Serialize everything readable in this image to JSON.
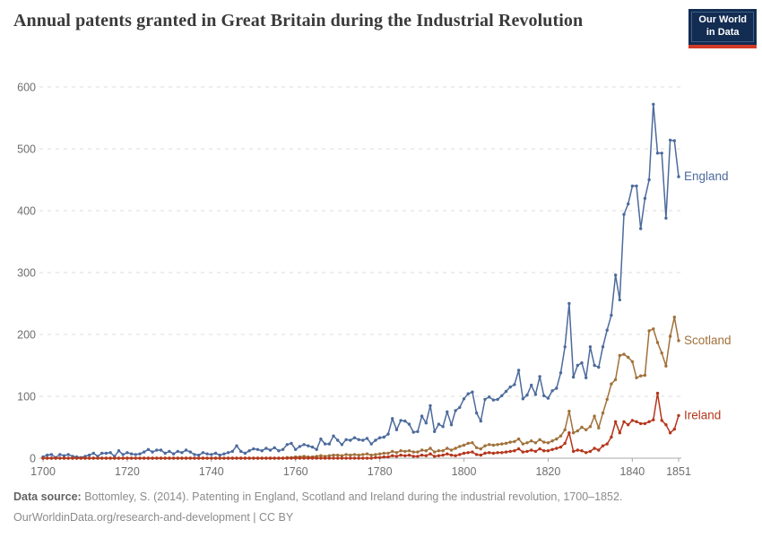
{
  "header": {
    "title": "Annual patents granted in Great Britain during the Industrial Revolution",
    "logo": {
      "line1": "Our World",
      "line2": "in Data",
      "bg_color": "#132C52",
      "accent_color": "#D33B26"
    }
  },
  "footer": {
    "source_label": "Data source:",
    "source_text": " Bottomley, S. (2014). Patenting in England, Scotland and Ireland during the industrial revolution, 1700–1852.",
    "link_line": "OurWorldinData.org/research-and-development | CC BY"
  },
  "chart_data": {
    "type": "line",
    "title": "Annual patents granted in Great Britain during the Industrial Revolution",
    "xlabel": "",
    "ylabel": "",
    "x_start": 1700,
    "x_end": 1851,
    "xlim": [
      1700,
      1851
    ],
    "ylim": [
      0,
      600
    ],
    "x_ticks": [
      1700,
      1720,
      1740,
      1760,
      1780,
      1800,
      1820,
      1840,
      1851
    ],
    "y_ticks": [
      0,
      100,
      200,
      300,
      400,
      500,
      600
    ],
    "grid": "horizontal-dashed",
    "legend_position": "line-end-labels",
    "marker": "dot",
    "series": [
      {
        "name": "England",
        "color": "#4C6A9C",
        "values": [
          2,
          5,
          6,
          1,
          6,
          4,
          6,
          3,
          2,
          1,
          3,
          5,
          8,
          3,
          8,
          8,
          9,
          3,
          12,
          6,
          9,
          7,
          6,
          7,
          10,
          14,
          10,
          13,
          13,
          8,
          11,
          7,
          11,
          9,
          13,
          10,
          6,
          5,
          9,
          7,
          6,
          8,
          5,
          7,
          9,
          11,
          20,
          11,
          8,
          12,
          15,
          14,
          12,
          16,
          13,
          17,
          12,
          14,
          22,
          24,
          14,
          19,
          22,
          20,
          18,
          14,
          31,
          23,
          23,
          36,
          29,
          22,
          30,
          29,
          33,
          30,
          29,
          32,
          23,
          29,
          33,
          34,
          39,
          64,
          46,
          61,
          60,
          55,
          42,
          43,
          68,
          57,
          85,
          43,
          55,
          51,
          75,
          54,
          77,
          82,
          96,
          104,
          107,
          73,
          60,
          95,
          99,
          94,
          95,
          101,
          108,
          115,
          119,
          142,
          96,
          102,
          118,
          103,
          132,
          101,
          97,
          109,
          113,
          138,
          180,
          250,
          131,
          150,
          154,
          130,
          180,
          150,
          147,
          180,
          207,
          231,
          296,
          256,
          394,
          411,
          440,
          440,
          371,
          420,
          450,
          572,
          493,
          493,
          388,
          514,
          513,
          455
        ]
      },
      {
        "name": "Scotland",
        "color": "#A0713A",
        "values": [
          0,
          0,
          0,
          0,
          0,
          0,
          0,
          0,
          0,
          0,
          0,
          0,
          0,
          0,
          0,
          0,
          0,
          0,
          0,
          0,
          0,
          0,
          0,
          0,
          0,
          0,
          0,
          0,
          0,
          0,
          0,
          0,
          0,
          0,
          0,
          0,
          0,
          0,
          0,
          0,
          0,
          0,
          0,
          0,
          0,
          0,
          0,
          0,
          0,
          0,
          0,
          0,
          0,
          0,
          0,
          0,
          0,
          0,
          1,
          1,
          2,
          2,
          3,
          2,
          2,
          3,
          4,
          3,
          4,
          5,
          5,
          4,
          6,
          5,
          6,
          5,
          6,
          7,
          5,
          6,
          7,
          8,
          8,
          11,
          9,
          12,
          11,
          12,
          10,
          10,
          13,
          12,
          16,
          10,
          12,
          12,
          16,
          13,
          16,
          19,
          21,
          24,
          25,
          17,
          15,
          20,
          22,
          21,
          22,
          23,
          24,
          26,
          27,
          31,
          23,
          25,
          28,
          25,
          30,
          26,
          25,
          28,
          31,
          36,
          46,
          76,
          41,
          44,
          50,
          46,
          51,
          68,
          49,
          73,
          95,
          120,
          127,
          166,
          168,
          163,
          156,
          130,
          133,
          134,
          206,
          209,
          187,
          170,
          149,
          197,
          228,
          190
        ]
      },
      {
        "name": "Ireland",
        "color": "#B5361C",
        "values": [
          0,
          0,
          0,
          0,
          0,
          0,
          0,
          0,
          0,
          0,
          0,
          0,
          0,
          0,
          0,
          0,
          0,
          0,
          0,
          0,
          0,
          0,
          0,
          0,
          0,
          0,
          0,
          0,
          0,
          0,
          0,
          0,
          0,
          0,
          0,
          0,
          0,
          0,
          0,
          0,
          0,
          0,
          0,
          0,
          0,
          0,
          0,
          0,
          0,
          0,
          0,
          0,
          0,
          0,
          0,
          0,
          0,
          0,
          0,
          0,
          0,
          0,
          0,
          0,
          0,
          0,
          0,
          0,
          0,
          0,
          0,
          0,
          0,
          0,
          0,
          0,
          0,
          0,
          0,
          1,
          1,
          2,
          2,
          4,
          3,
          5,
          4,
          5,
          3,
          3,
          5,
          4,
          7,
          3,
          4,
          5,
          7,
          5,
          4,
          6,
          8,
          9,
          10,
          6,
          5,
          8,
          9,
          8,
          9,
          9,
          10,
          11,
          12,
          15,
          10,
          11,
          13,
          11,
          15,
          12,
          12,
          14,
          16,
          18,
          24,
          41,
          11,
          13,
          12,
          9,
          11,
          16,
          13,
          20,
          23,
          34,
          59,
          41,
          59,
          54,
          61,
          59,
          56,
          56,
          59,
          62,
          105,
          61,
          54,
          41,
          47,
          69
        ]
      }
    ]
  }
}
